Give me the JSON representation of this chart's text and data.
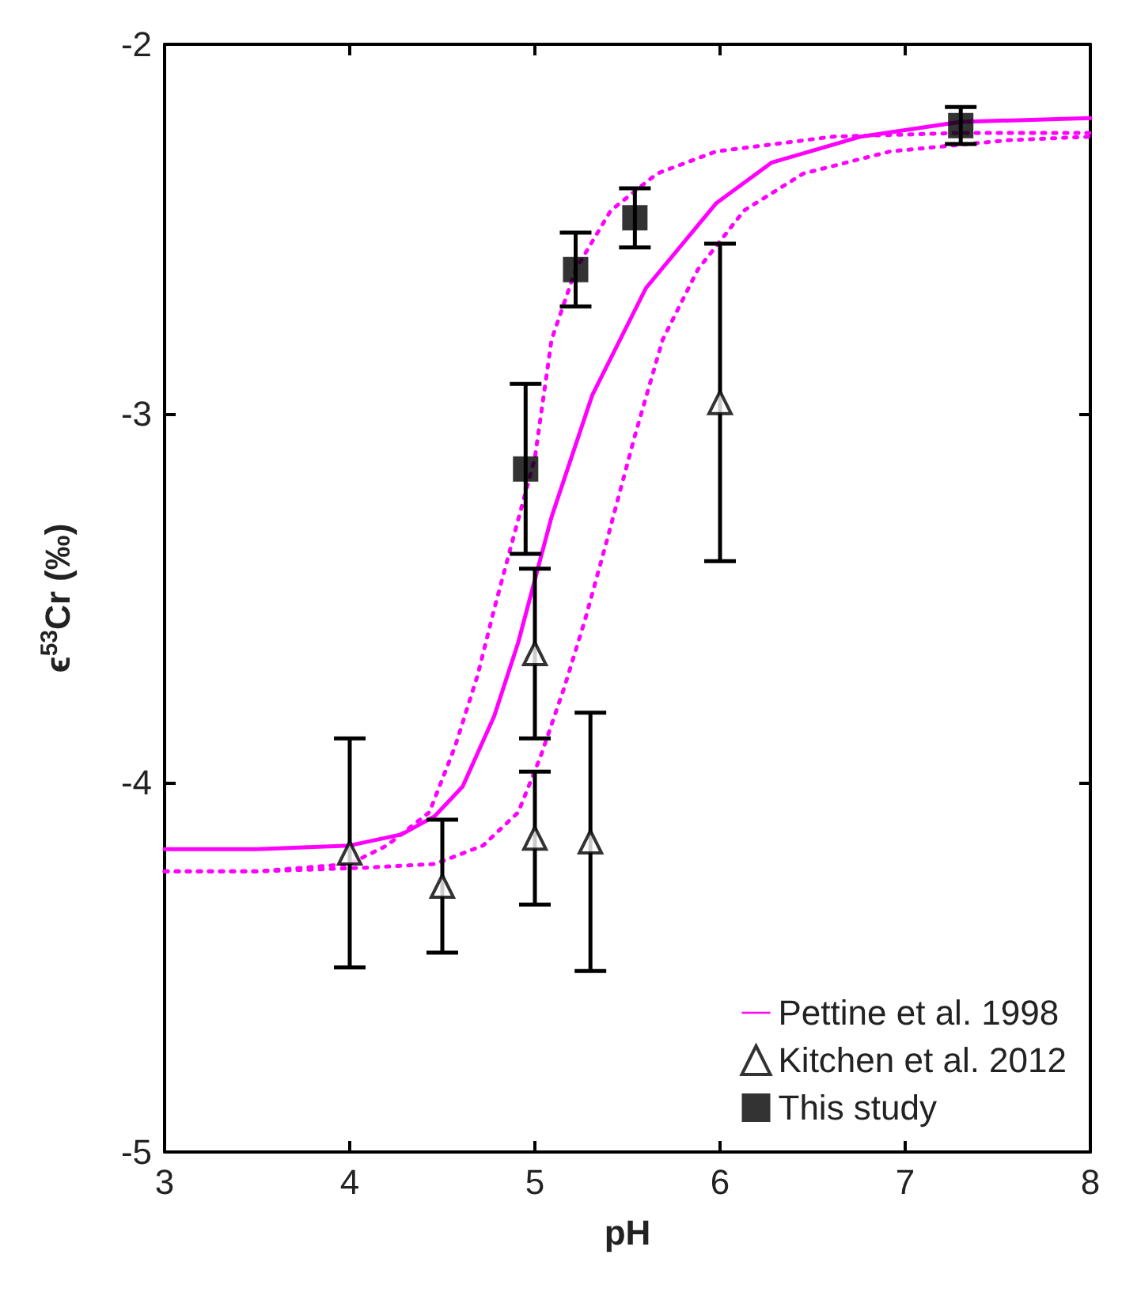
{
  "chart_data": {
    "type": "line",
    "xlabel": "pH",
    "ylabel": "ϵ$^{53}$Cr (‰)",
    "xlim": [
      3,
      8
    ],
    "xticks": [
      3,
      4,
      5,
      6,
      7,
      8
    ],
    "ylim": [
      -5,
      -2
    ],
    "yticks": [
      -5,
      -4,
      -3,
      -2
    ],
    "grid": false,
    "legend": "bottom right",
    "series": [
      {
        "name": "Pettine et al. 1998",
        "color": "#ff00ff",
        "line_style": "solid",
        "marker": "none",
        "x": [
          3,
          3.5,
          4,
          4.28,
          4.46,
          4.61,
          4.78,
          4.91,
          5.09,
          5.31,
          5.6,
          5.98,
          6.28,
          6.76,
          7.3,
          8
        ],
        "values": [
          -4.18,
          -4.18,
          -4.17,
          -4.14,
          -4.09,
          -4.01,
          -3.82,
          -3.62,
          -3.28,
          -2.95,
          -2.66,
          -2.43,
          -2.32,
          -2.25,
          -2.21,
          -2.2
        ]
      },
      {
        "color": "#ff00ff",
        "line_style": "dotted",
        "marker": "none",
        "x": [
          3,
          3.5,
          4,
          4.2,
          4.43,
          4.57,
          4.69,
          4.78,
          4.86,
          5.0,
          5.09,
          5.22,
          5.41,
          5.66,
          5.98,
          6.61,
          7.3,
          8
        ],
        "values": [
          -4.24,
          -4.24,
          -4.22,
          -4.17,
          -4.08,
          -3.9,
          -3.71,
          -3.53,
          -3.38,
          -3.12,
          -2.8,
          -2.61,
          -2.45,
          -2.35,
          -2.29,
          -2.25,
          -2.24,
          -2.24
        ]
      },
      {
        "color": "#ff00ff",
        "line_style": "dotted",
        "marker": "none",
        "x": [
          3,
          3.5,
          4.09,
          4.46,
          4.72,
          4.91,
          5.03,
          5.16,
          5.27,
          5.38,
          5.54,
          5.69,
          5.88,
          6.13,
          6.45,
          6.92,
          7.55,
          8
        ],
        "values": [
          -4.24,
          -4.24,
          -4.23,
          -4.22,
          -4.17,
          -4.08,
          -3.93,
          -3.74,
          -3.56,
          -3.36,
          -3.06,
          -2.8,
          -2.61,
          -2.45,
          -2.35,
          -2.29,
          -2.26,
          -2.25
        ]
      },
      {
        "name": "Kitchen et al. 2012",
        "type": "scatter",
        "color": "#000000",
        "marker": "triangle",
        "x": [
          4,
          4.5,
          5,
          5,
          5.3,
          6
        ],
        "values": [
          -4.19,
          -4.28,
          -3.65,
          -4.15,
          -4.16,
          -2.97
        ],
        "errors": [
          0.31,
          0.18,
          0.23,
          0.18,
          0.35,
          0.43
        ]
      },
      {
        "name": "This study",
        "type": "scatter",
        "color": "#000000",
        "marker": "square",
        "x": [
          4.95,
          5.22,
          5.54,
          7.3
        ],
        "values": [
          -3.15,
          -2.61,
          -2.47,
          -2.22
        ],
        "errors": [
          0.23,
          0.1,
          0.08,
          0.05
        ]
      }
    ]
  }
}
